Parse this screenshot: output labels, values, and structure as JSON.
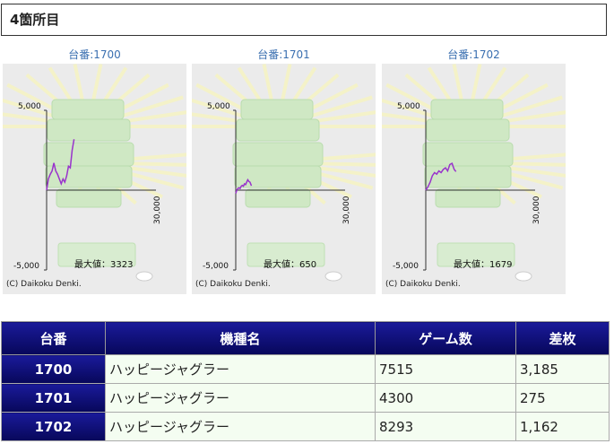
{
  "section": {
    "title": "4箇所目"
  },
  "graphs": [
    {
      "label": "台番:1700",
      "y_top": "5,000",
      "y_bottom": "-5,000",
      "x_end": "30,000",
      "max_label": "最大値：3323",
      "credit": "(C) Daikoku Denki."
    },
    {
      "label": "台番:1701",
      "y_top": "5,000",
      "y_bottom": "-5,000",
      "x_end": "30,000",
      "max_label": "最大値：650",
      "credit": "(C) Daikoku Denki."
    },
    {
      "label": "台番:1702",
      "y_top": "5,000",
      "y_bottom": "-5,000",
      "x_end": "30,000",
      "max_label": "最大値：1679",
      "credit": "(C) Daikoku Denki."
    }
  ],
  "chart_data": [
    {
      "type": "line",
      "title": "台番:1700",
      "ylim": [
        -5000,
        5000
      ],
      "xlim": [
        0,
        30000
      ],
      "color": "#9933cc",
      "x": [
        0,
        500,
        1000,
        1500,
        2000,
        2500,
        3000,
        3500,
        4000,
        4500,
        5000,
        5500,
        6000,
        6500,
        7000,
        7515
      ],
      "y": [
        0,
        700,
        1000,
        1200,
        1700,
        1200,
        1000,
        700,
        400,
        700,
        500,
        900,
        1500,
        1400,
        2500,
        3185
      ]
    },
    {
      "type": "line",
      "title": "台番:1701",
      "ylim": [
        -5000,
        5000
      ],
      "xlim": [
        0,
        30000
      ],
      "color": "#9933cc",
      "x": [
        0,
        300,
        600,
        900,
        1200,
        1500,
        1800,
        2100,
        2400,
        2700,
        3000,
        3300,
        3600,
        3900,
        4300
      ],
      "y": [
        -200,
        0,
        100,
        150,
        100,
        250,
        300,
        250,
        400,
        350,
        500,
        650,
        550,
        500,
        275
      ]
    },
    {
      "type": "line",
      "title": "台番:1702",
      "ylim": [
        -5000,
        5000
      ],
      "xlim": [
        0,
        30000
      ],
      "color": "#9933cc",
      "x": [
        0,
        600,
        1200,
        1800,
        2400,
        3000,
        3600,
        4200,
        4800,
        5400,
        6000,
        6600,
        7200,
        7800,
        8293
      ],
      "y": [
        0,
        200,
        500,
        900,
        1100,
        1000,
        1200,
        1100,
        1300,
        1400,
        1200,
        1600,
        1679,
        1300,
        1162
      ]
    }
  ],
  "table": {
    "headers": [
      "台番",
      "機種名",
      "ゲーム数",
      "差枚"
    ],
    "rows": [
      [
        "1700",
        "ハッピージャグラー",
        "7515",
        "3,185"
      ],
      [
        "1701",
        "ハッピージャグラー",
        "4300",
        "275"
      ],
      [
        "1702",
        "ハッピージャグラー",
        "8293",
        "1,162"
      ]
    ]
  }
}
